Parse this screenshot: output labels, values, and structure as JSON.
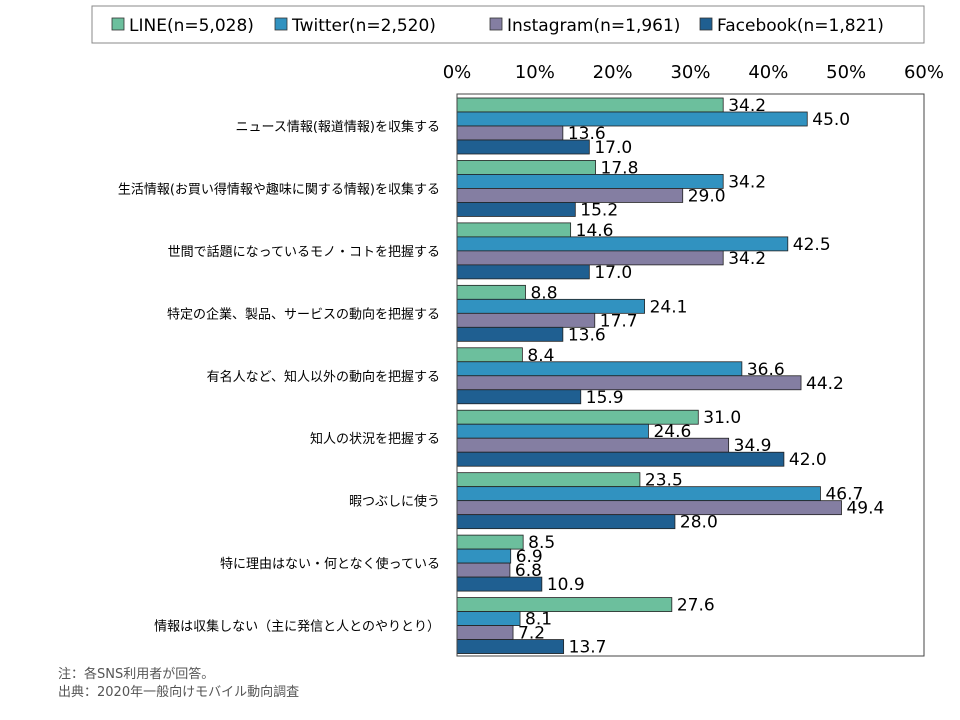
{
  "chart_data": {
    "type": "bar",
    "orientation": "horizontal",
    "categories": [
      "ニュース情報(報道情報)を収集する",
      "生活情報(お買い得情報や趣味に関する情報)を収集する",
      "世間で話題になっているモノ・コトを把握する",
      "特定の企業、製品、サービスの動向を把握する",
      "有名人など、知人以外の動向を把握する",
      "知人の状況を把握する",
      "暇つぶしに使う",
      "特に理由はない・何となく使っている",
      "情報は収集しない（主に発信と人とのやりとり）"
    ],
    "series": [
      {
        "name": "LINE(n=5,028)",
        "color": "#6cbf9d",
        "values": [
          34.2,
          17.8,
          14.6,
          8.8,
          8.4,
          31.0,
          23.5,
          8.5,
          27.6
        ]
      },
      {
        "name": "Twitter(n=2,520)",
        "color": "#3192c0",
        "values": [
          45.0,
          34.2,
          42.5,
          24.1,
          36.6,
          24.6,
          46.7,
          6.9,
          8.1
        ]
      },
      {
        "name": "Instagram(n=1,961)",
        "color": "#847ea2",
        "values": [
          13.6,
          29.0,
          34.2,
          17.7,
          44.2,
          34.9,
          49.4,
          6.8,
          7.2
        ]
      },
      {
        "name": "Facebook(n=1,821)",
        "color": "#1f5f91",
        "values": [
          17.0,
          15.2,
          17.0,
          13.6,
          15.9,
          42.0,
          28.0,
          10.9,
          13.7
        ]
      }
    ],
    "xlim": [
      0,
      60
    ],
    "xticks": [
      "0%",
      "10%",
      "20%",
      "30%",
      "40%",
      "50%",
      "60%"
    ],
    "legend_position": "top",
    "grid": false
  },
  "notes": {
    "line1": "注：各SNS利用者が回答。",
    "line2": "出典：2020年一般向けモバイル動向調査"
  }
}
